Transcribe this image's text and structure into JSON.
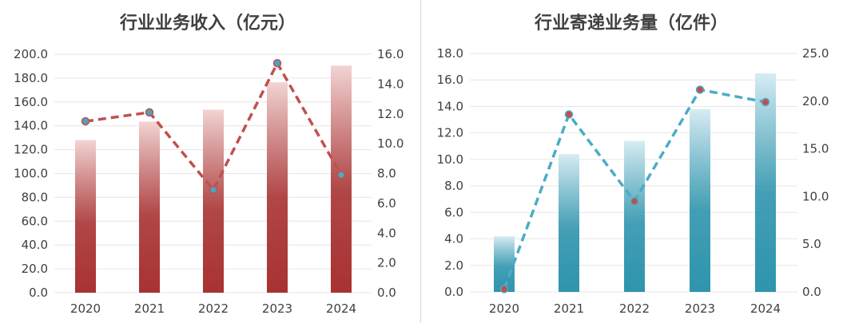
{
  "chart_data": [
    {
      "type": "bar",
      "title": "行业业务收入（亿元）",
      "categories": [
        "2020",
        "2021",
        "2022",
        "2023",
        "2024"
      ],
      "series": [
        {
          "values": [
            128.0,
            143.5,
            153.5,
            176.5,
            190.5
          ],
          "axis": "left"
        },
        {
          "values": [
            11.5,
            12.1,
            6.9,
            15.4,
            7.9
          ],
          "axis": "right",
          "render": "line"
        }
      ],
      "y_left": {
        "range": [
          0,
          200
        ],
        "step": 20,
        "ticks": [
          "0.0",
          "20.0",
          "40.0",
          "60.0",
          "80.0",
          "100.0",
          "120.0",
          "140.0",
          "160.0",
          "180.0",
          "200.0"
        ]
      },
      "y_right": {
        "range": [
          0,
          16
        ],
        "step": 2,
        "ticks": [
          "0.0",
          "2.0",
          "4.0",
          "6.0",
          "8.0",
          "10.0",
          "12.0",
          "14.0",
          "16.0"
        ]
      },
      "grid": true,
      "colors": {
        "bar_top": "#f2d4d4",
        "bar_bottom": "#a83232",
        "line": "#c0504d",
        "marker": "#4aa3c7",
        "marker_last": "#4bacc6"
      }
    },
    {
      "type": "bar",
      "title": "行业寄递业务量（亿件）",
      "categories": [
        "2020",
        "2021",
        "2022",
        "2023",
        "2024"
      ],
      "series": [
        {
          "values": [
            4.2,
            10.4,
            11.4,
            13.8,
            16.5
          ],
          "axis": "left"
        },
        {
          "values": [
            0.3,
            18.6,
            9.5,
            21.2,
            19.9
          ],
          "axis": "right",
          "render": "line"
        }
      ],
      "y_left": {
        "range": [
          0,
          18
        ],
        "step": 2,
        "ticks": [
          "0.0",
          "2.0",
          "4.0",
          "6.0",
          "8.0",
          "10.0",
          "12.0",
          "14.0",
          "16.0",
          "18.0"
        ]
      },
      "y_right": {
        "range": [
          0,
          25
        ],
        "step": 5,
        "ticks": [
          "0.0",
          "5.0",
          "10.0",
          "15.0",
          "20.0",
          "25.0"
        ]
      },
      "grid": true,
      "colors": {
        "bar_top": "#d7ecf3",
        "bar_bottom": "#2e94ad",
        "line": "#4bacc6",
        "marker": "#c0504d",
        "marker_last": "#c0504d"
      }
    }
  ]
}
